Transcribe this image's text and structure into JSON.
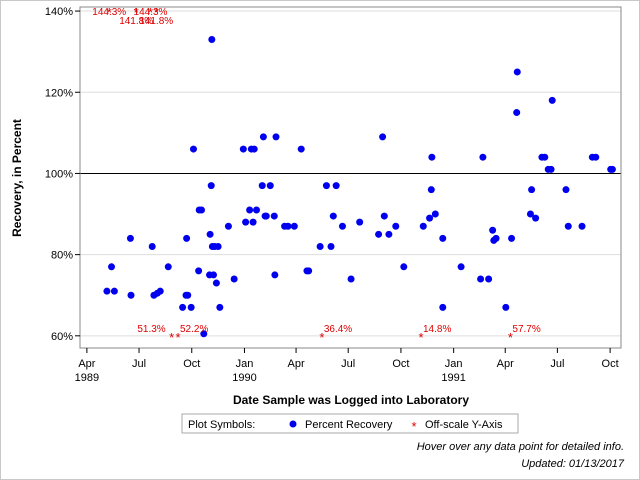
{
  "chart_data": {
    "type": "scatter",
    "xlabel": "Date Sample was Logged into Laboratory",
    "ylabel": "Recovery, in Percent",
    "x_range": [
      "1989-03-20",
      "1991-10-20"
    ],
    "ylim": [
      57,
      141
    ],
    "y_ticks": [
      60,
      80,
      100,
      120,
      140
    ],
    "y_tick_labels": [
      "60%",
      "80%",
      "100%",
      "120%",
      "140%"
    ],
    "x_ticks": [
      {
        "date": "1989-04-01",
        "label": "Apr"
      },
      {
        "date": "1989-07-01",
        "label": "Jul"
      },
      {
        "date": "1989-10-01",
        "label": "Oct"
      },
      {
        "date": "1990-01-01",
        "label": "Jan"
      },
      {
        "date": "1990-04-01",
        "label": "Apr"
      },
      {
        "date": "1990-07-01",
        "label": "Jul"
      },
      {
        "date": "1990-10-01",
        "label": "Oct"
      },
      {
        "date": "1991-01-01",
        "label": "Jan"
      },
      {
        "date": "1991-04-01",
        "label": "Apr"
      },
      {
        "date": "1991-07-01",
        "label": "Jul"
      },
      {
        "date": "1991-10-01",
        "label": "Oct"
      }
    ],
    "year_labels": [
      {
        "date": "1989-04-01",
        "label": "1989"
      },
      {
        "date": "1990-01-01",
        "label": "1990"
      },
      {
        "date": "1991-01-01",
        "label": "1991"
      }
    ],
    "reference_line": 100,
    "grid": "horizontal",
    "colors": {
      "points": "#0000ee",
      "offscale": "#e00000",
      "grid": "#dddddd"
    },
    "series": [
      {
        "name": "Percent Recovery",
        "marker": "circle",
        "points": [
          [
            "1989-05-06",
            71
          ],
          [
            "1989-05-14",
            77
          ],
          [
            "1989-05-19",
            71
          ],
          [
            "1989-06-16",
            84
          ],
          [
            "1989-06-17",
            70
          ],
          [
            "1989-07-24",
            82
          ],
          [
            "1989-07-27",
            70
          ],
          [
            "1989-08-02",
            70.5
          ],
          [
            "1989-08-07",
            71
          ],
          [
            "1989-08-21",
            77
          ],
          [
            "1989-09-15",
            67
          ],
          [
            "1989-09-21",
            70
          ],
          [
            "1989-09-22",
            84
          ],
          [
            "1989-09-24",
            70
          ],
          [
            "1989-09-30",
            67
          ],
          [
            "1989-10-04",
            106
          ],
          [
            "1989-10-13",
            76
          ],
          [
            "1989-10-14",
            91
          ],
          [
            "1989-10-18",
            91
          ],
          [
            "1989-10-22",
            60.5
          ],
          [
            "1989-11-01",
            75
          ],
          [
            "1989-11-02",
            85
          ],
          [
            "1989-11-04",
            97
          ],
          [
            "1989-11-05",
            133
          ],
          [
            "1989-11-06",
            82
          ],
          [
            "1989-11-08",
            75
          ],
          [
            "1989-11-10",
            82
          ],
          [
            "1989-11-13",
            73
          ],
          [
            "1989-11-16",
            82
          ],
          [
            "1989-11-19",
            67
          ],
          [
            "1989-12-04",
            87
          ],
          [
            "1989-12-14",
            74
          ],
          [
            "1989-12-30",
            106
          ],
          [
            "1990-01-03",
            88
          ],
          [
            "1990-01-10",
            91
          ],
          [
            "1990-01-13",
            106
          ],
          [
            "1990-01-16",
            88
          ],
          [
            "1990-01-18",
            106
          ],
          [
            "1990-01-22",
            91
          ],
          [
            "1990-02-01",
            97
          ],
          [
            "1990-02-03",
            109
          ],
          [
            "1990-02-06",
            89.5
          ],
          [
            "1990-02-08",
            89.5
          ],
          [
            "1990-02-15",
            97
          ],
          [
            "1990-02-22",
            89.5
          ],
          [
            "1990-02-23",
            75
          ],
          [
            "1990-02-25",
            109
          ],
          [
            "1990-03-12",
            87
          ],
          [
            "1990-03-18",
            87
          ],
          [
            "1990-03-29",
            87
          ],
          [
            "1990-04-10",
            106
          ],
          [
            "1990-04-20",
            76
          ],
          [
            "1990-04-23",
            76
          ],
          [
            "1990-05-13",
            82
          ],
          [
            "1990-05-24",
            97
          ],
          [
            "1990-06-01",
            82
          ],
          [
            "1990-06-05",
            89.5
          ],
          [
            "1990-06-10",
            97
          ],
          [
            "1990-06-21",
            87
          ],
          [
            "1990-07-06",
            74
          ],
          [
            "1990-07-21",
            88
          ],
          [
            "1990-08-23",
            85
          ],
          [
            "1990-08-30",
            109
          ],
          [
            "1990-09-02",
            89.5
          ],
          [
            "1990-09-10",
            85
          ],
          [
            "1990-09-22",
            87
          ],
          [
            "1990-10-06",
            77
          ],
          [
            "1990-11-09",
            87
          ],
          [
            "1990-11-20",
            89
          ],
          [
            "1990-11-23",
            96
          ],
          [
            "1990-11-24",
            104
          ],
          [
            "1990-11-30",
            90
          ],
          [
            "1990-12-13",
            84
          ],
          [
            "1990-12-13",
            67
          ],
          [
            "1991-01-14",
            77
          ],
          [
            "1991-02-17",
            74
          ],
          [
            "1991-02-21",
            104
          ],
          [
            "1991-03-03",
            74
          ],
          [
            "1991-03-10",
            86
          ],
          [
            "1991-03-12",
            83.5
          ],
          [
            "1991-03-16",
            84
          ],
          [
            "1991-04-02",
            67
          ],
          [
            "1991-04-12",
            84
          ],
          [
            "1991-04-21",
            115
          ],
          [
            "1991-04-22",
            125
          ],
          [
            "1991-05-15",
            90
          ],
          [
            "1991-05-17",
            96
          ],
          [
            "1991-05-24",
            89
          ],
          [
            "1991-06-04",
            104
          ],
          [
            "1991-06-09",
            104
          ],
          [
            "1991-06-15",
            101
          ],
          [
            "1991-06-20",
            101
          ],
          [
            "1991-06-22",
            118
          ],
          [
            "1991-07-16",
            96
          ],
          [
            "1991-07-20",
            87
          ],
          [
            "1991-08-13",
            87
          ],
          [
            "1991-08-31",
            104
          ],
          [
            "1991-09-06",
            104
          ],
          [
            "1991-10-02",
            101
          ],
          [
            "1991-10-05",
            101
          ]
        ]
      },
      {
        "name": "Off-scale Y-Axis",
        "marker": "asterisk",
        "points": [
          {
            "x": "1989-05-10",
            "y": 140,
            "label": "144.3%"
          },
          {
            "x": "1989-06-26",
            "y": 140,
            "label": "141.8%"
          },
          {
            "x": "1989-07-21",
            "y": 140,
            "label": "144.3%"
          },
          {
            "x": "1989-07-31",
            "y": 140,
            "label": "141.8%"
          },
          {
            "x": "1989-08-27",
            "y": 60,
            "label": "51.3%"
          },
          {
            "x": "1989-09-07",
            "y": 60,
            "label": "52.2%"
          },
          {
            "x": "1990-05-16",
            "y": 60,
            "label": "36.4%"
          },
          {
            "x": "1990-11-05",
            "y": 60,
            "label": "14.8%"
          },
          {
            "x": "1991-04-10",
            "y": 60,
            "label": "57.7%"
          }
        ]
      }
    ],
    "legend": {
      "position": "bottom",
      "title": "Plot Symbols:",
      "items": [
        {
          "label": "Percent Recovery",
          "marker": "circle"
        },
        {
          "label": "Off-scale Y-Axis",
          "marker": "asterisk"
        }
      ]
    }
  },
  "notes": {
    "hover": "Hover over any data point for detailed info.",
    "updated": "Updated: 01/13/2017"
  }
}
